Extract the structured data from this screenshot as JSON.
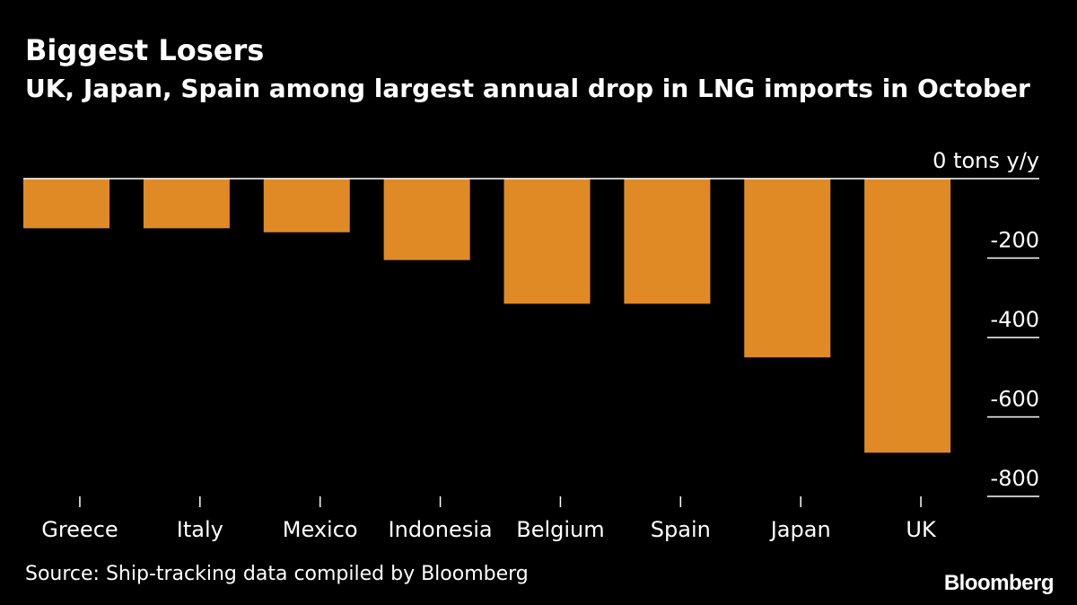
{
  "colors": {
    "background": "#000000",
    "bar": "#e08a26",
    "text": "#ffffff",
    "zero_line": "#ffffff"
  },
  "chart_data": {
    "type": "bar",
    "title": "Biggest Losers",
    "subtitle": "UK, Japan, Spain among largest annual drop in LNG imports in October",
    "categories": [
      "Greece",
      "Italy",
      "Mexico",
      "Indonesia",
      "Belgium",
      "Spain",
      "Japan",
      "UK"
    ],
    "values": [
      -125,
      -125,
      -135,
      -205,
      -315,
      -315,
      -450,
      -690
    ],
    "y_unit_label": "0 tons y/y",
    "y_ticks": [
      0,
      -200,
      -400,
      -600,
      -800
    ],
    "y_tick_labels": [
      "0 tons y/y",
      "-200",
      "-400",
      "-600",
      "-800"
    ],
    "ylim": [
      -800,
      0
    ],
    "y_axis_position": "right",
    "grid": false,
    "legend": "none"
  },
  "source": "Source: Ship-tracking data compiled by Bloomberg",
  "brand": "Bloomberg"
}
